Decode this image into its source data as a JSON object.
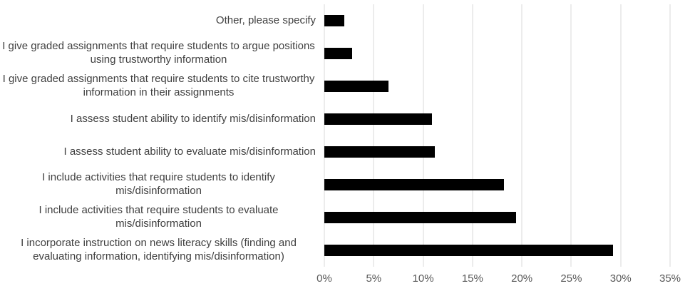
{
  "chart_data": {
    "type": "bar",
    "orientation": "horizontal",
    "title": "",
    "xlabel": "",
    "ylabel": "",
    "categories": [
      "Other, please specify",
      "I give graded assignments that require students to argue positions using trustworthy information",
      "I give graded assignments that require students to cite trustworthy information in their assignments",
      "I assess student ability to identify mis/disinformation",
      "I assess student ability to evaluate mis/disinformation",
      "I include activities that require students to identify mis/disinformation",
      "I include activities that require students to evaluate mis/disinformation",
      "I incorporate instruction on news literacy skills (finding and evaluating information, identifying mis/disinformation)"
    ],
    "values": [
      2.0,
      2.8,
      6.5,
      10.9,
      11.2,
      18.2,
      19.4,
      29.2
    ],
    "xlim": [
      0,
      35
    ],
    "x_ticks": [
      {
        "value": 0,
        "label": "0%"
      },
      {
        "value": 5,
        "label": "5%"
      },
      {
        "value": 10,
        "label": "10%"
      },
      {
        "value": 15,
        "label": "15%"
      },
      {
        "value": 20,
        "label": "20%"
      },
      {
        "value": 25,
        "label": "25%"
      },
      {
        "value": 30,
        "label": "30%"
      },
      {
        "value": 35,
        "label": "35%"
      }
    ],
    "grid": "vertical",
    "legend": "none",
    "colors": {
      "bar": "#000000",
      "gridline": "#d9d9d9",
      "tick_label": "#595959",
      "category_label": "#404040",
      "background": "#ffffff"
    }
  }
}
